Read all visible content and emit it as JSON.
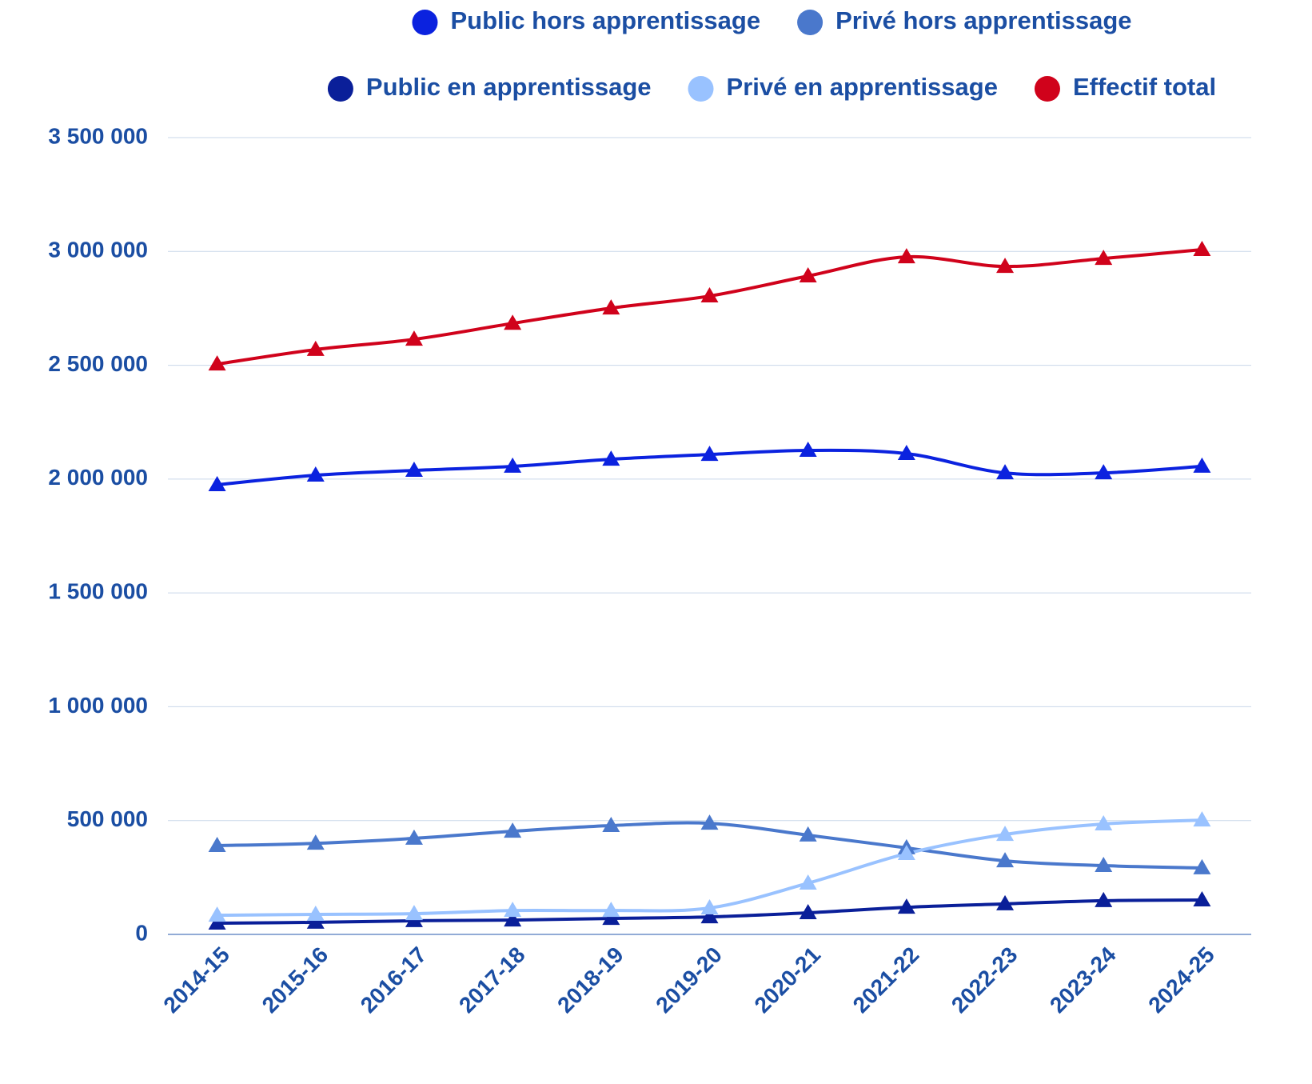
{
  "chart_data": {
    "type": "line",
    "categories": [
      "2014-15",
      "2015-16",
      "2016-17",
      "2017-18",
      "2018-19",
      "2019-20",
      "2020-21",
      "2021-22",
      "2022-23",
      "2023-24",
      "2024-25"
    ],
    "series": [
      {
        "name": "Public hors apprentissage",
        "color": "#0b22df",
        "values": [
          1975000,
          2017000,
          2038000,
          2056000,
          2087000,
          2108000,
          2126000,
          2112000,
          2027000,
          2027000,
          2056000
        ]
      },
      {
        "name": "Privé hors apprentissage",
        "color": "#4a78cc",
        "values": [
          390000,
          400000,
          422000,
          453000,
          478000,
          488000,
          436000,
          380000,
          323000,
          302000,
          292000
        ]
      },
      {
        "name": "Public en apprentissage",
        "color": "#0a1f99",
        "values": [
          49000,
          53000,
          60000,
          63000,
          70000,
          77000,
          95000,
          119000,
          134000,
          148000,
          151000
        ]
      },
      {
        "name": "Privé en apprentissage",
        "color": "#99c2ff",
        "values": [
          84000,
          88000,
          91000,
          105000,
          105000,
          116000,
          225000,
          355000,
          439000,
          485000,
          502000
        ]
      },
      {
        "name": "Effectif total",
        "color": "#d0021b",
        "values": [
          2505000,
          2569000,
          2614000,
          2684000,
          2751000,
          2804000,
          2892000,
          2976000,
          2934000,
          2969000,
          3008000
        ]
      }
    ],
    "ylim": [
      0,
      3500000
    ],
    "yticks": [
      0,
      {
        "value": 500000,
        "label": "500 000"
      },
      {
        "value": 1000000,
        "label": "1 000 000"
      },
      {
        "value": 1500000,
        "label": "1 500 000"
      },
      {
        "value": 2000000,
        "label": "2 000 000"
      },
      {
        "value": 2500000,
        "label": "2 500 000"
      },
      {
        "value": 3000000,
        "label": "3 000 000"
      },
      {
        "value": 3500000,
        "label": "3 500 000"
      }
    ],
    "grid": true
  }
}
